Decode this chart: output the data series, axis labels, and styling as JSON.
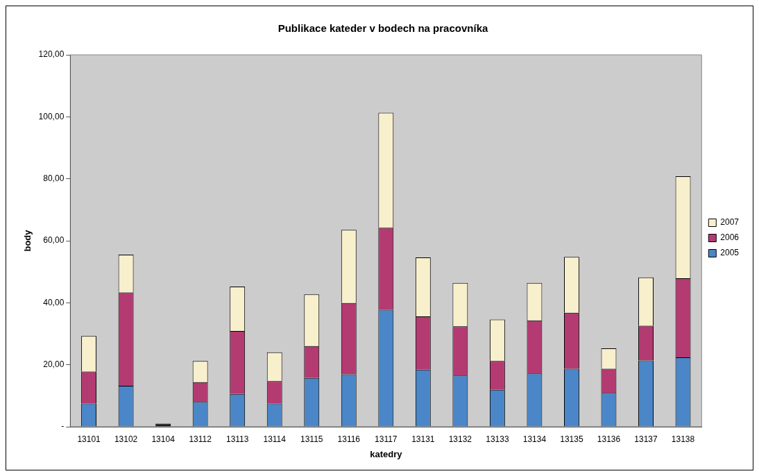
{
  "chart_data": {
    "type": "bar",
    "title": "Publikace kateder v bodech na pracovníka",
    "xlabel": "katedry",
    "ylabel": "body",
    "categories": [
      "13101",
      "13102",
      "13104",
      "13112",
      "13113",
      "13114",
      "13115",
      "13116",
      "13117",
      "13131",
      "13132",
      "13133",
      "13134",
      "13135",
      "13136",
      "13137",
      "13138"
    ],
    "series": [
      {
        "name": "2005",
        "color": "#4a86c8",
        "colors": [
          "#4a86c8",
          "#4a86c8",
          "#1a1a1a",
          "#4a86c8",
          "#4a86c8",
          "#4a86c8",
          "#4a86c8",
          "#4a86c8",
          "#4a86c8",
          "#4a86c8",
          "#4a86c8",
          "#4a86c8",
          "#4a86c8",
          "#4a86c8",
          "#4a86c8",
          "#4a86c8",
          "#4a86c8"
        ],
        "values": [
          7.5,
          13.2,
          1.0,
          8.0,
          10.6,
          7.5,
          15.7,
          16.9,
          37.7,
          18.4,
          16.5,
          11.9,
          17.2,
          18.7,
          10.9,
          21.4,
          22.4
        ]
      },
      {
        "name": "2006",
        "color": "#b43a72",
        "values": [
          10.3,
          30.1,
          null,
          6.4,
          20.3,
          7.2,
          10.3,
          23.0,
          26.5,
          17.2,
          15.9,
          9.3,
          17.1,
          18.1,
          7.8,
          11.2,
          25.5
        ]
      },
      {
        "name": "2007",
        "color": "#f8efcc",
        "values": [
          11.5,
          12.2,
          null,
          6.8,
          14.3,
          9.3,
          16.7,
          23.6,
          37.1,
          19.0,
          14.0,
          13.4,
          12.1,
          18.0,
          6.6,
          15.6,
          32.9
        ]
      }
    ],
    "stacked": true,
    "ylim": [
      0,
      120
    ],
    "yticks": [
      {
        "value": 0,
        "label": "-"
      },
      {
        "value": 20,
        "label": "20,00"
      },
      {
        "value": 40,
        "label": "40,00"
      },
      {
        "value": 60,
        "label": "60,00"
      },
      {
        "value": 80,
        "label": "80,00"
      },
      {
        "value": 100,
        "label": "100,00"
      },
      {
        "value": 120,
        "label": "120,00"
      }
    ],
    "legend": "right"
  }
}
